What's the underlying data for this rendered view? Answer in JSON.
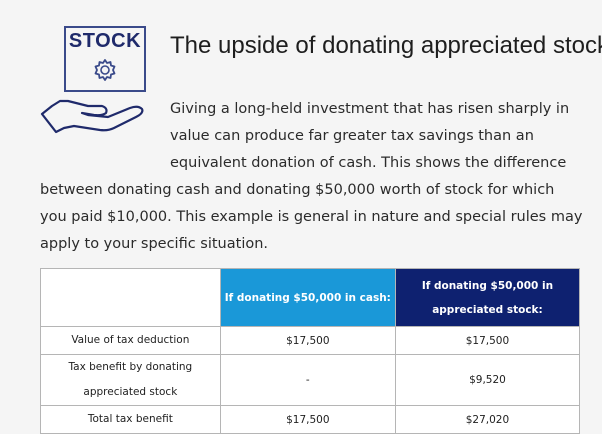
{
  "icon": {
    "stock_word": "STOCK",
    "gear": "gear-icon",
    "hand": "open-hand-icon",
    "color": "#1f2a6b"
  },
  "title": "The upside of donating appreciated stock",
  "intro_lines": [
    "Giving a long-held investment that has risen sharply in",
    "value can produce far greater tax savings than an",
    "equivalent donation of cash. This shows the difference",
    "between donating cash and donating $50,000 worth of stock for which",
    "you paid $10,000. This example is general in nature and special rules may",
    "apply to your specific situation."
  ],
  "table": {
    "headers": {
      "blank": "",
      "cash": "If donating $50,000 in cash:",
      "stock": "If donating $50,000 in appreciated stock:"
    },
    "rows": [
      {
        "label": "Value of tax deduction",
        "cash": "$17,500",
        "stock": "$17,500"
      },
      {
        "label": "Tax benefit by donating appreciated stock",
        "cash": "-",
        "stock": "$9,520"
      },
      {
        "label": "Total tax benefit",
        "cash": "$17,500",
        "stock": "$27,020"
      }
    ],
    "colors": {
      "cash_header": "#1a98d8",
      "stock_header": "#0e2170"
    }
  }
}
